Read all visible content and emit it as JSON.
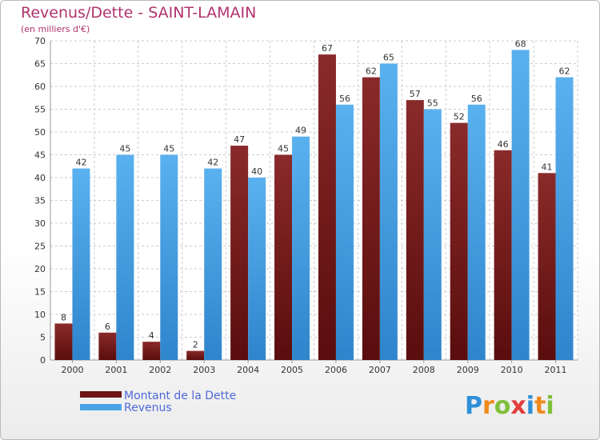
{
  "chart_data": {
    "type": "bar",
    "title": "Revenus/Dette - SAINT-LAMAIN",
    "subtitle": "(en milliers d'€)",
    "categories": [
      "2000",
      "2001",
      "2002",
      "2003",
      "2004",
      "2005",
      "2006",
      "2007",
      "2008",
      "2009",
      "2010",
      "2011"
    ],
    "series": [
      {
        "name": "Montant de la Dette",
        "color": "#7a1e1e",
        "values": [
          8,
          6,
          4,
          2,
          47,
          45,
          67,
          62,
          57,
          52,
          46,
          41
        ]
      },
      {
        "name": "Revenus",
        "color": "#4aa3e6",
        "values": [
          42,
          45,
          45,
          42,
          40,
          49,
          56,
          65,
          55,
          56,
          68,
          62
        ]
      }
    ],
    "ylim": [
      0,
      70
    ],
    "yticks": [
      0,
      5,
      10,
      15,
      20,
      25,
      30,
      35,
      40,
      45,
      50,
      55,
      60,
      65,
      70
    ],
    "grid": true,
    "legend_position": "bottom-left"
  },
  "brand": {
    "letters": [
      "P",
      "r",
      "o",
      "x",
      "i",
      "t",
      "i"
    ],
    "colors": [
      "#2f8fd8",
      "#f08a1c",
      "#7fbf3a",
      "#e23d3d",
      "#2f8fd8",
      "#f08a1c",
      "#7fbf3a"
    ]
  }
}
